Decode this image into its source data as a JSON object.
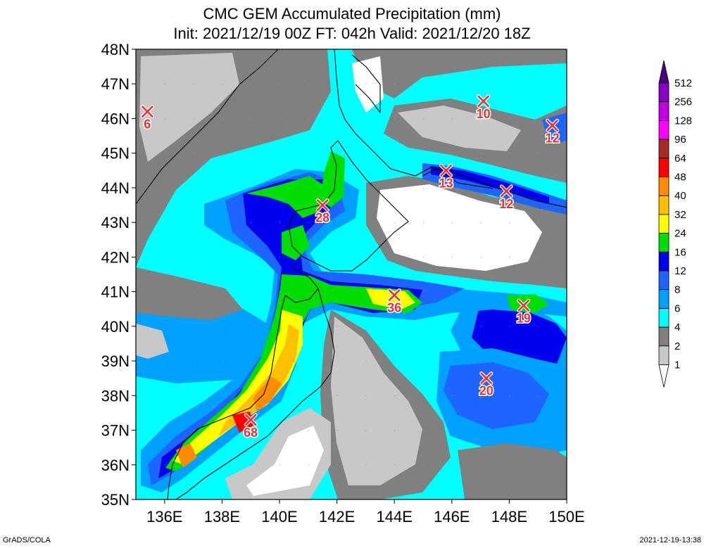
{
  "title": "CMC GEM Accumulated Precipitation (mm)",
  "subtitle": "Init: 2021/12/19 00Z  FT: 042h  Valid: 2021/12/20 18Z",
  "lat_labels": [
    "48N",
    "47N",
    "46N",
    "45N",
    "44N",
    "43N",
    "42N",
    "41N",
    "40N",
    "39N",
    "38N",
    "37N",
    "36N",
    "35N"
  ],
  "lon_labels": [
    "136E",
    "138E",
    "140E",
    "142E",
    "144E",
    "146E",
    "148E",
    "150E"
  ],
  "extent": {
    "lon": [
      135,
      150
    ],
    "lat": [
      35,
      48
    ]
  },
  "legend": {
    "labels": [
      "512",
      "256",
      "128",
      "96",
      "64",
      "48",
      "40",
      "32",
      "24",
      "16",
      "12",
      "8",
      "6",
      "4",
      "2",
      "1"
    ],
    "colors": [
      "#4b0082",
      "#8a00c4",
      "#c000e0",
      "#ff00ff",
      "#a52a2a",
      "#ff0000",
      "#ff8c00",
      "#ffc000",
      "#ffff00",
      "#00dd00",
      "#0000ee",
      "#1e64ff",
      "#00a0ff",
      "#00ffff",
      "#808080",
      "#c8c8c8",
      "#ffffff"
    ]
  },
  "markers": [
    {
      "lon": 135.4,
      "lat": 46.2,
      "value": "6"
    },
    {
      "lon": 147.1,
      "lat": 46.5,
      "value": "10"
    },
    {
      "lon": 149.5,
      "lat": 45.8,
      "value": "12"
    },
    {
      "lon": 145.8,
      "lat": 44.5,
      "value": "13"
    },
    {
      "lon": 147.9,
      "lat": 43.9,
      "value": "12"
    },
    {
      "lon": 141.5,
      "lat": 43.5,
      "value": "28"
    },
    {
      "lon": 144.0,
      "lat": 40.9,
      "value": "36"
    },
    {
      "lon": 148.5,
      "lat": 40.6,
      "value": "19"
    },
    {
      "lon": 147.2,
      "lat": 38.5,
      "value": "20"
    },
    {
      "lon": 139.0,
      "lat": 37.3,
      "value": "68"
    }
  ],
  "footer": {
    "left": "GrADS/COLA",
    "right": "2021-12-19-13:38"
  }
}
